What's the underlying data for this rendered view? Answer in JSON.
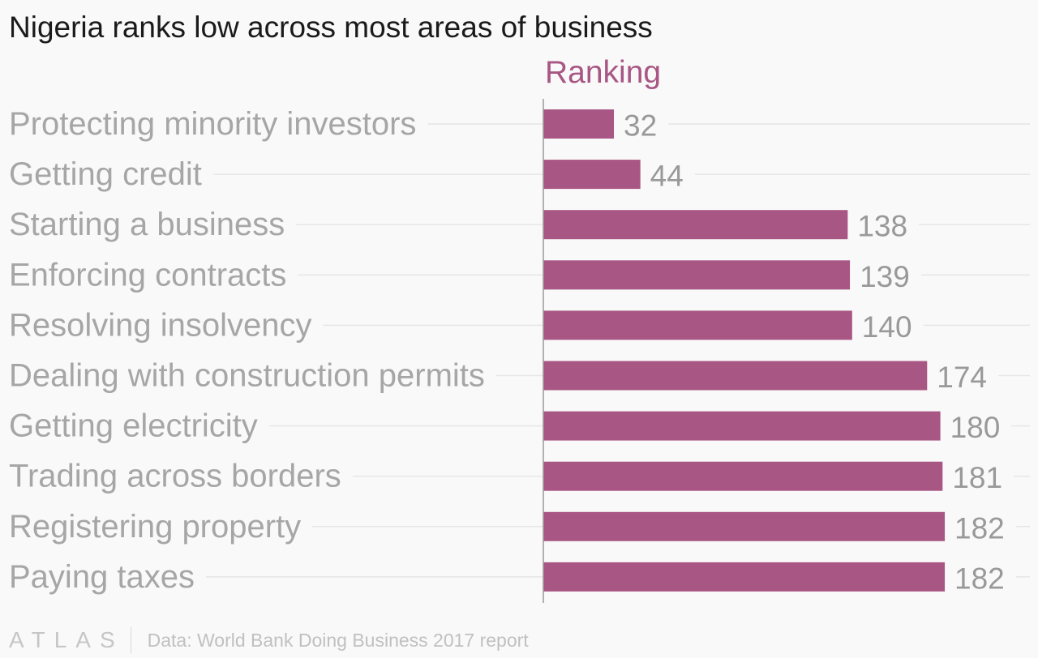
{
  "title": "Nigeria ranks low across most areas of business",
  "colors": {
    "bar": "#a85683",
    "series_label": "#a85683",
    "value_label": "#999999",
    "category_label": "#a6a6a6",
    "gridline": "#e6e6e6",
    "axis": "#9a9a9a"
  },
  "chart_data": {
    "type": "bar",
    "orientation": "horizontal",
    "title": "Nigeria ranks low across most areas of business",
    "categories": [
      "Protecting minority investors",
      "Getting credit",
      "Starting a business",
      "Enforcing contracts",
      "Resolving insolvency",
      "Dealing with construction permits",
      "Getting electricity",
      "Trading across borders",
      "Registering property",
      "Paying taxes"
    ],
    "series": [
      {
        "name": "Ranking",
        "values": [
          32,
          44,
          138,
          139,
          140,
          174,
          180,
          181,
          182,
          182
        ]
      }
    ],
    "xlim": [
      0,
      190
    ],
    "grid": true,
    "data_labels": true,
    "legend": "none"
  },
  "footer": {
    "logo": "ATLAS",
    "source": "Data: World Bank Doing Business 2017 report"
  }
}
